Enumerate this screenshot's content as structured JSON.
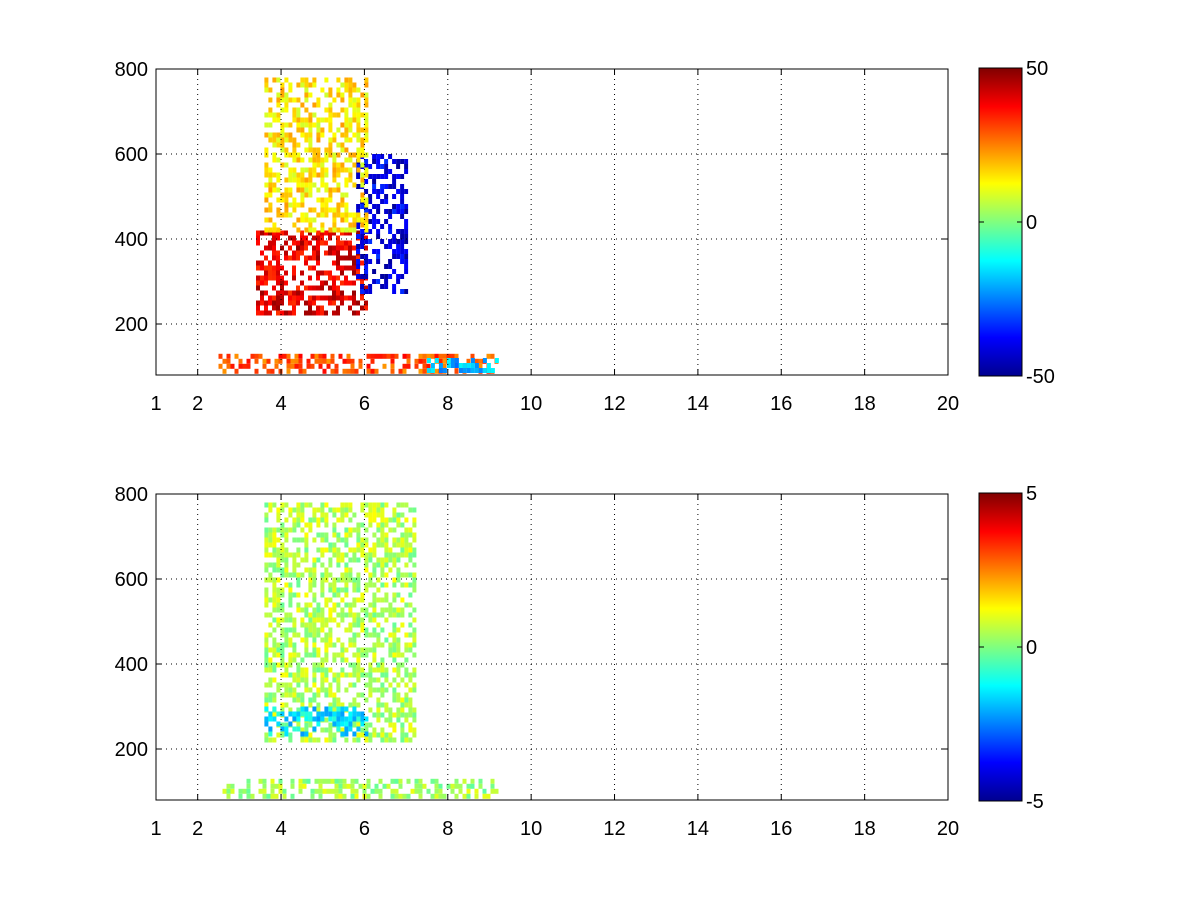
{
  "chart_data": [
    {
      "type": "heatmap",
      "title": "",
      "xlabel": "",
      "ylabel": "",
      "xlim": [
        1,
        20
      ],
      "ylim": [
        80,
        800
      ],
      "x_ticks": [
        1,
        2,
        4,
        6,
        8,
        10,
        12,
        14,
        16,
        18,
        20
      ],
      "x_tick_labels": [
        "1",
        "2",
        "4",
        "6",
        "8",
        "10",
        "12",
        "14",
        "16",
        "18",
        "20"
      ],
      "y_ticks": [
        200,
        400,
        600,
        800
      ],
      "y_tick_labels": [
        "200",
        "400",
        "600",
        "800"
      ],
      "grid": true,
      "colormap": "jet",
      "missing_color": "#ffffff",
      "clim": [
        -50,
        50
      ],
      "colorbar_ticks": [
        -50,
        0,
        50
      ],
      "colorbar_tick_labels": [
        "-50",
        "0",
        "50"
      ],
      "features": [
        {
          "x": [
            3.4,
            6.0
          ],
          "y": [
            230,
            420
          ],
          "value": 40
        },
        {
          "x": [
            5.8,
            7.0
          ],
          "y": [
            280,
            600
          ],
          "value": -40
        },
        {
          "x": [
            2.5,
            9.2
          ],
          "y": [
            90,
            130
          ],
          "value": 30
        },
        {
          "x": [
            7.5,
            9.2
          ],
          "y": [
            90,
            120
          ],
          "value": -20
        },
        {
          "x": [
            3.6,
            6.0
          ],
          "y": [
            420,
            780
          ],
          "value": 15
        }
      ]
    },
    {
      "type": "heatmap",
      "title": "",
      "xlabel": "",
      "ylabel": "",
      "xlim": [
        1,
        20
      ],
      "ylim": [
        80,
        800
      ],
      "x_ticks": [
        1,
        2,
        4,
        6,
        8,
        10,
        12,
        14,
        16,
        18,
        20
      ],
      "x_tick_labels": [
        "1",
        "2",
        "4",
        "6",
        "8",
        "10",
        "12",
        "14",
        "16",
        "18",
        "20"
      ],
      "y_ticks": [
        200,
        400,
        600,
        800
      ],
      "y_tick_labels": [
        "200",
        "400",
        "600",
        "800"
      ],
      "grid": true,
      "colormap": "jet",
      "missing_color": "#ffffff",
      "clim": [
        -5,
        5
      ],
      "colorbar_ticks": [
        -5,
        0,
        5
      ],
      "colorbar_tick_labels": [
        "-5",
        "0",
        "5"
      ],
      "features": [
        {
          "x": [
            3.6,
            7.2
          ],
          "y": [
            220,
            780
          ],
          "value": 0.5
        },
        {
          "x": [
            3.6,
            6.0
          ],
          "y": [
            230,
            300
          ],
          "value": -1.5
        },
        {
          "x": [
            2.5,
            9.2
          ],
          "y": [
            90,
            130
          ],
          "value": 0.4
        }
      ]
    }
  ]
}
